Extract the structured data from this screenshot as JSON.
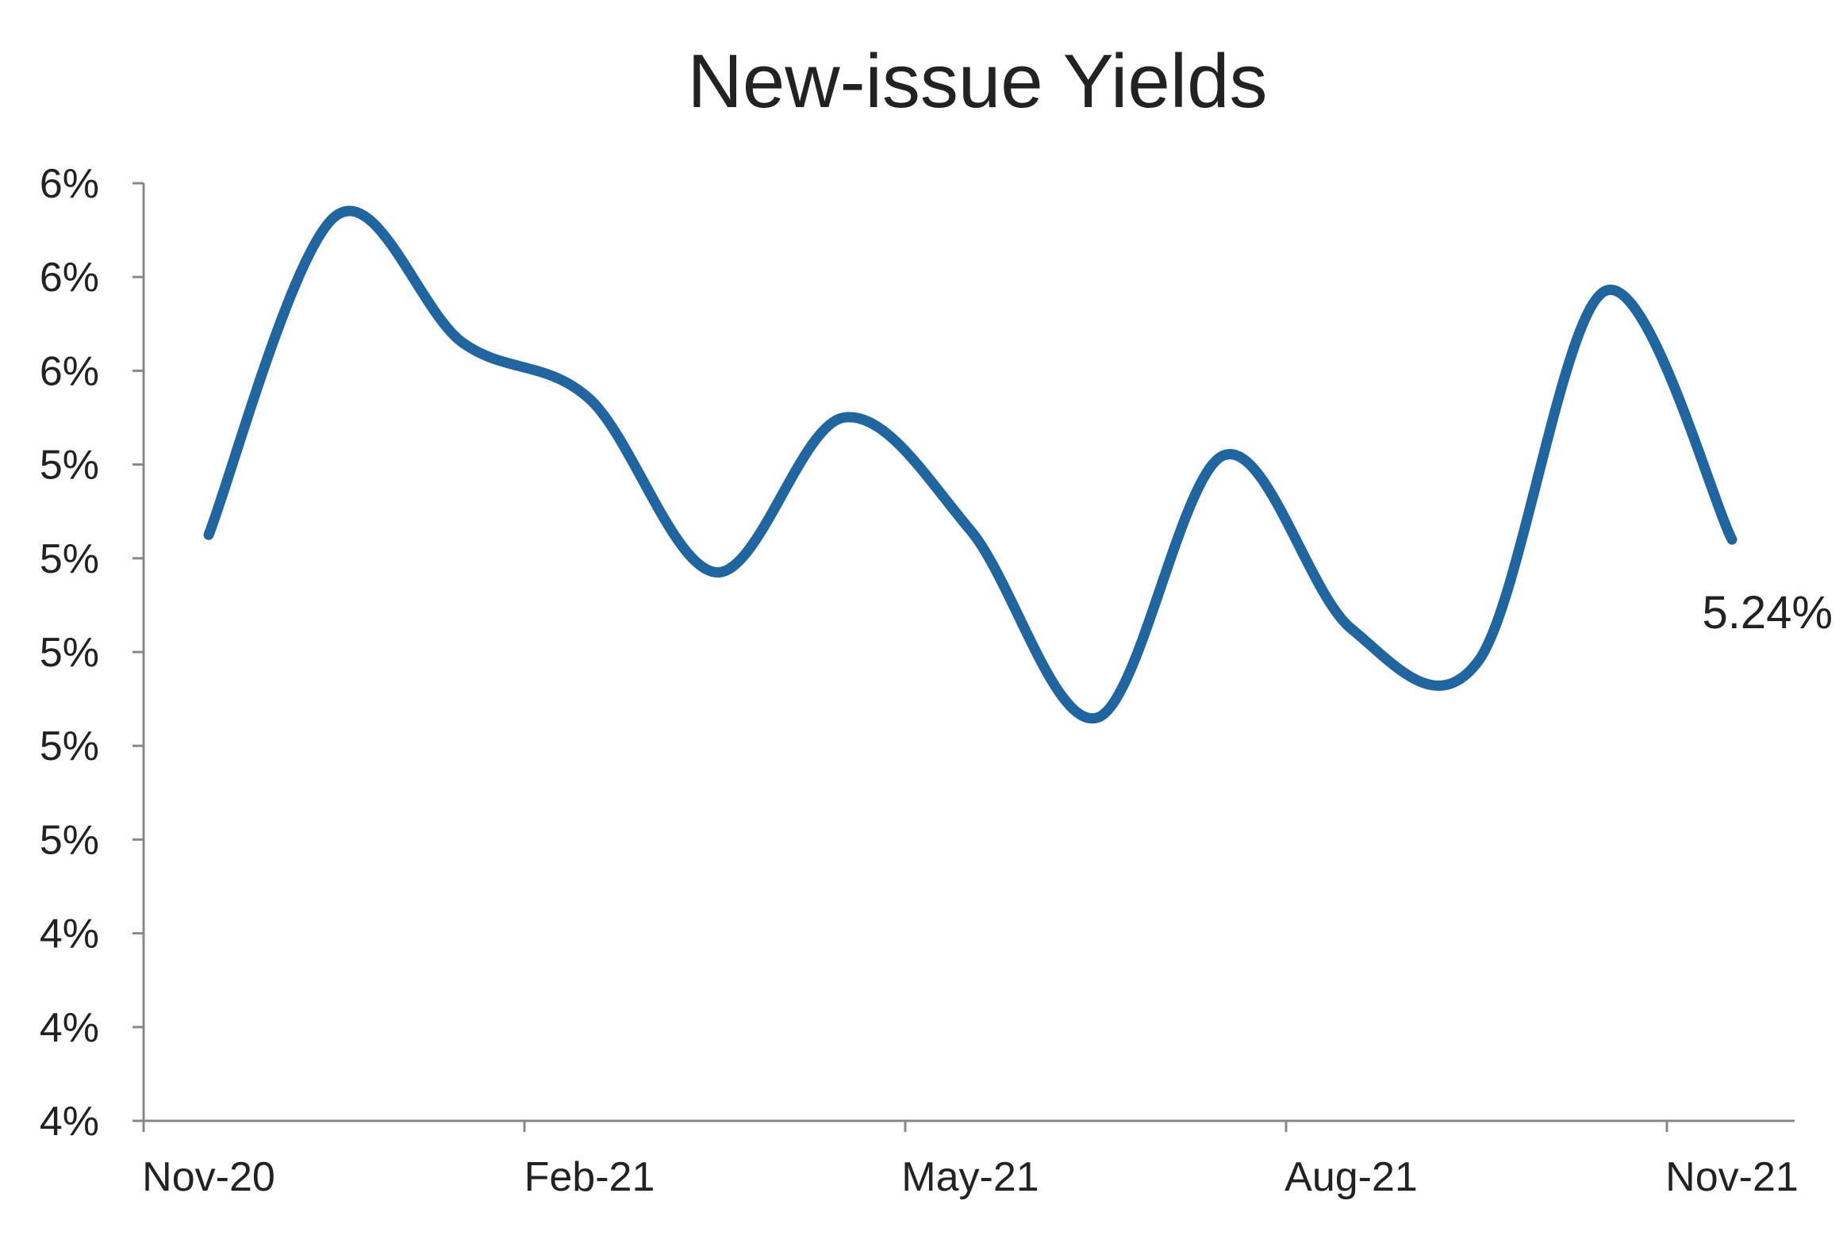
{
  "chart_data": {
    "type": "line",
    "title": "New-issue Yields",
    "xlabel": "",
    "ylabel": "",
    "x_ticks": [
      "Nov-20",
      "Feb-21",
      "May-21",
      "Aug-21",
      "Nov-21"
    ],
    "y_tick_labels": [
      "4%",
      "4%",
      "4%",
      "5%",
      "5%",
      "5%",
      "5%",
      "5%",
      "6%",
      "6%",
      "6%"
    ],
    "ylim": [
      4.0,
      6.0
    ],
    "y_tick_step": 0.2,
    "grid": false,
    "legend": "none",
    "line_color": "#1f65a0",
    "x": [
      "Nov-20",
      "Dec-20",
      "Jan-21",
      "Feb-21",
      "Mar-21",
      "Apr-21",
      "May-21",
      "Jun-21",
      "Jul-21",
      "Aug-21",
      "Sep-21",
      "Oct-21",
      "Nov-21"
    ],
    "series": [
      {
        "values": [
          5.25,
          5.93,
          5.66,
          5.54,
          5.17,
          5.5,
          5.26,
          4.86,
          5.42,
          5.05,
          4.98,
          5.77,
          5.24
        ]
      }
    ],
    "end_label": "5.24%"
  }
}
